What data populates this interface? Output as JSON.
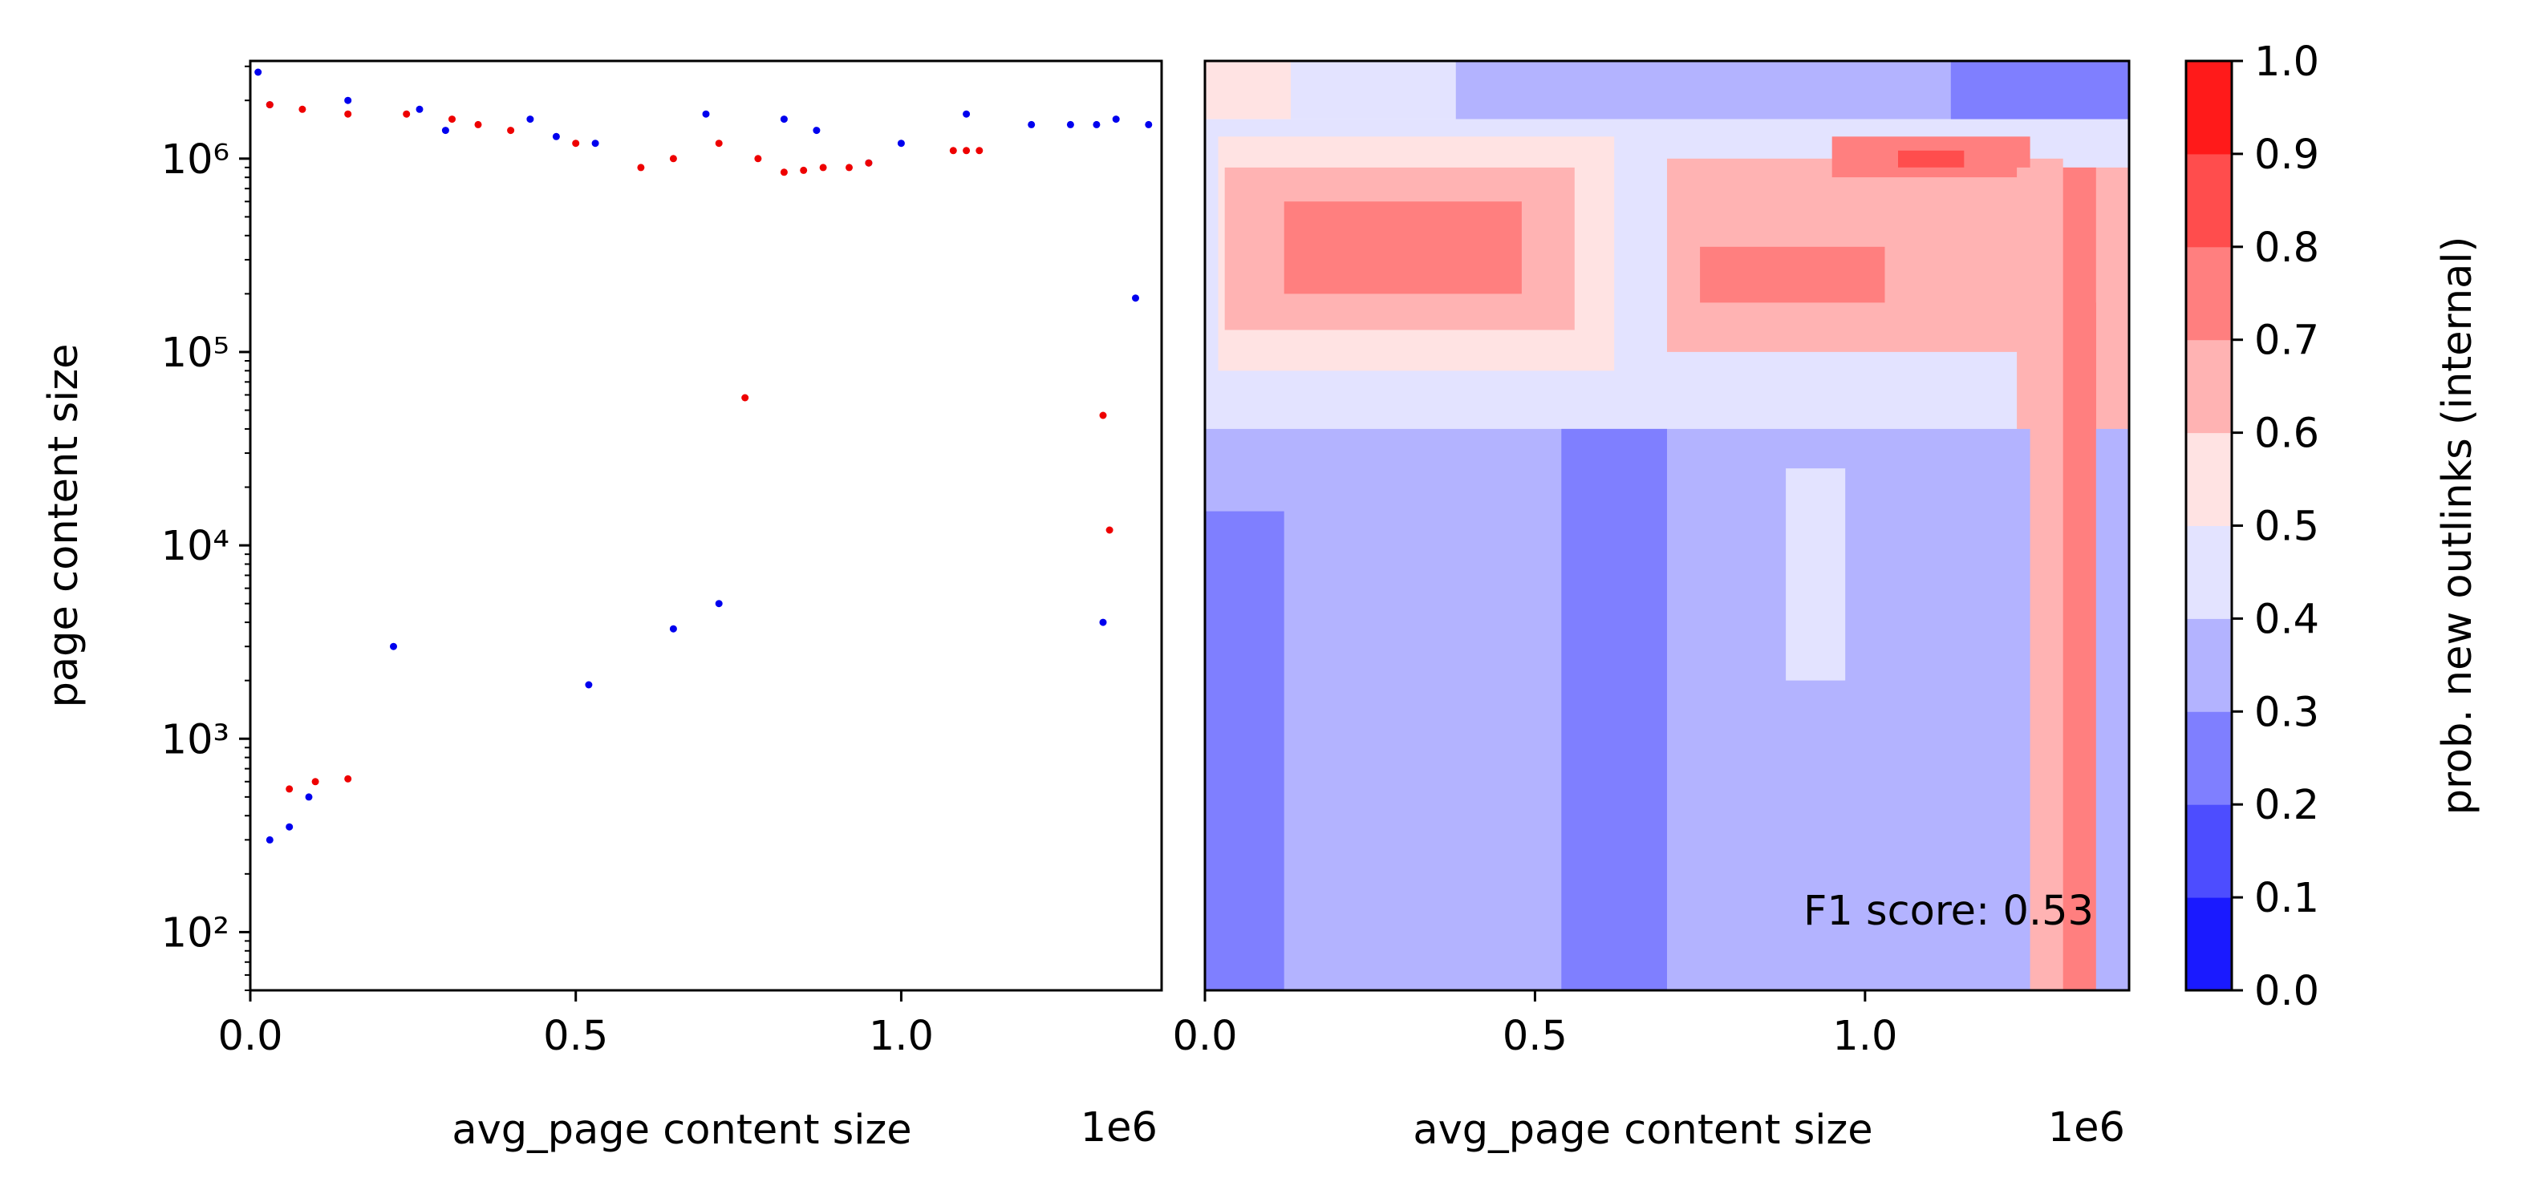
{
  "chart_data": [
    {
      "type": "scatter",
      "panel": "left",
      "xlabel": "avg_page content size",
      "ylabel": "page content size",
      "x_offset_label": "1e6",
      "xlim": [
        0,
        1400000
      ],
      "ylim": [
        50,
        3200000
      ],
      "yscale": "log",
      "x_ticks": [
        0,
        500000,
        1000000
      ],
      "x_tick_labels": [
        "0.0",
        "0.5",
        "1.0"
      ],
      "y_ticks": [
        100,
        1000,
        10000,
        100000,
        1000000
      ],
      "y_tick_labels": [
        "10²",
        "10³",
        "10⁴",
        "10⁵",
        "10⁶"
      ],
      "grid": false,
      "series": [
        {
          "color": "#0000ee",
          "x": [
            12000,
            30000,
            150000,
            260000,
            300000,
            430000,
            470000,
            530000,
            700000,
            820000,
            870000,
            950000,
            1000000,
            1100000,
            1200000,
            1260000,
            1330000,
            1380000,
            1360000,
            1310000,
            650000,
            720000,
            520000,
            220000,
            90000,
            60000,
            30000,
            1300000
          ],
          "y": [
            2800000,
            1900000,
            2000000,
            1800000,
            1400000,
            1600000,
            1300000,
            1200000,
            1700000,
            1600000,
            1400000,
            950000,
            1200000,
            1700000,
            1500000,
            1500000,
            1600000,
            1500000,
            190000,
            4000,
            3700,
            5000,
            1900,
            3000,
            500,
            350,
            300,
            1500000
          ]
        },
        {
          "color": "#ee0000",
          "x": [
            30000,
            80000,
            150000,
            240000,
            310000,
            350000,
            400000,
            500000,
            600000,
            650000,
            720000,
            780000,
            820000,
            850000,
            880000,
            920000,
            950000,
            1080000,
            1100000,
            1120000,
            760000,
            1310000,
            1320000,
            100000,
            150000,
            60000
          ],
          "y": [
            1900000,
            1800000,
            1700000,
            1700000,
            1600000,
            1500000,
            1400000,
            1200000,
            900000,
            1000000,
            1200000,
            1000000,
            850000,
            870000,
            900000,
            900000,
            950000,
            1100000,
            1100000,
            1100000,
            58000,
            47000,
            12000,
            600,
            620,
            550
          ]
        }
      ]
    },
    {
      "type": "heatmap",
      "panel": "right",
      "xlabel": "avg_page content size",
      "x_offset_label": "1e6",
      "xlim": [
        0,
        1400000
      ],
      "x_ticks": [
        0,
        500000,
        1000000
      ],
      "x_tick_labels": [
        "0.0",
        "0.5",
        "1.0"
      ],
      "annotation": "F1 score: 0.53",
      "colorbar": {
        "label": "prob. new outlinks (internal)",
        "range": [
          0,
          1
        ],
        "ticks": [
          0.0,
          0.1,
          0.2,
          0.3,
          0.4,
          0.5,
          0.6,
          0.7,
          0.8,
          0.9,
          1.0
        ],
        "tick_labels": [
          "0.0",
          "0.1",
          "0.2",
          "0.3",
          "0.4",
          "0.5",
          "0.6",
          "0.7",
          "0.8",
          "0.9",
          "1.0"
        ],
        "levels": [
          "#1a1aff",
          "#4d4dff",
          "#7f7fff",
          "#b3b3ff",
          "#e3e3ff",
          "#ffe3e3",
          "#ffb3b3",
          "#ff7f7f",
          "#ff4d4d",
          "#ff1a1a"
        ]
      },
      "regions": [
        {
          "x": [
            0,
            130000
          ],
          "y": [
            1600000,
            3200000
          ],
          "level": 5
        },
        {
          "x": [
            130000,
            380000
          ],
          "y": [
            1600000,
            3200000
          ],
          "level": 4
        },
        {
          "x": [
            380000,
            1400000
          ],
          "y": [
            1600000,
            3200000
          ],
          "level": 3
        },
        {
          "x": [
            1130000,
            1400000
          ],
          "y": [
            1300000,
            3200000
          ],
          "level": 2
        },
        {
          "x": [
            0,
            1400000
          ],
          "y": [
            50,
            1600000
          ],
          "level": 4
        },
        {
          "x": [
            20000,
            620000
          ],
          "y": [
            80000,
            1300000
          ],
          "level": 5
        },
        {
          "x": [
            30000,
            560000
          ],
          "y": [
            130000,
            900000
          ],
          "level": 6
        },
        {
          "x": [
            120000,
            480000
          ],
          "y": [
            200000,
            600000
          ],
          "level": 7
        },
        {
          "x": [
            700000,
            1300000
          ],
          "y": [
            100000,
            1000000
          ],
          "level": 6
        },
        {
          "x": [
            750000,
            1030000
          ],
          "y": [
            180000,
            350000
          ],
          "level": 7
        },
        {
          "x": [
            950000,
            1250000
          ],
          "y": [
            800000,
            1300000
          ],
          "level": 7
        },
        {
          "x": [
            1050000,
            1150000
          ],
          "y": [
            900000,
            1100000
          ],
          "level": 8
        },
        {
          "x": [
            1230000,
            1400000
          ],
          "y": [
            50,
            900000
          ],
          "level": 6
        },
        {
          "x": [
            1280000,
            1350000
          ],
          "y": [
            50,
            180000
          ],
          "level": 7
        },
        {
          "x": [
            0,
            1400000
          ],
          "y": [
            50,
            40000
          ],
          "level": 3
        },
        {
          "x": [
            0,
            120000
          ],
          "y": [
            50,
            15000
          ],
          "level": 2
        },
        {
          "x": [
            540000,
            700000
          ],
          "y": [
            50,
            40000
          ],
          "level": 2
        },
        {
          "x": [
            880000,
            1020000
          ],
          "y": [
            50,
            50
          ],
          "level": 4
        },
        {
          "x": [
            880000,
            970000
          ],
          "y": [
            2000,
            25000
          ],
          "level": 4
        },
        {
          "x": [
            1250000,
            1310000
          ],
          "y": [
            50,
            50
          ],
          "level": 6
        },
        {
          "x": [
            1250000,
            1310000
          ],
          "y": [
            50,
            900000
          ],
          "level": 6
        },
        {
          "x": [
            1300000,
            1350000
          ],
          "y": [
            50,
            900000
          ],
          "level": 7
        }
      ]
    }
  ]
}
